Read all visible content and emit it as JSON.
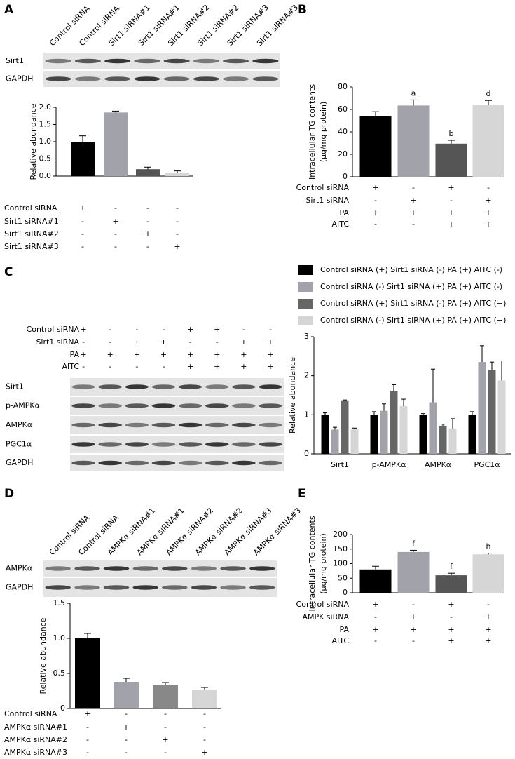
{
  "panels": [
    "A",
    "B",
    "C",
    "D",
    "E"
  ],
  "blots": [
    {
      "lanes": [
        "Control siRNA",
        "Control siRNA",
        "Sirt1 siRNA#1",
        "Sirt1 siRNA#1",
        "Sirt1 siRNA#2",
        "Sirt1 siRNA#2",
        "Sirt1 siRNA#3",
        "Sirt1 siRNA#3"
      ],
      "rows": [
        "Sirt1",
        "GAPDH"
      ]
    },
    {
      "conditions": [
        {
          "name": "Control siRNA",
          "marks": [
            "+",
            "-",
            "-",
            "-",
            "+",
            "+",
            "-",
            "-"
          ]
        },
        {
          "name": "Sirt1 siRNA",
          "marks": [
            "-",
            "-",
            "+",
            "+",
            "-",
            "-",
            "+",
            "+"
          ]
        },
        {
          "name": "PA",
          "marks": [
            "+",
            "+",
            "+",
            "+",
            "+",
            "+",
            "+",
            "+"
          ]
        },
        {
          "name": "AITC",
          "marks": [
            "-",
            "-",
            "-",
            "-",
            "+",
            "+",
            "+",
            "+"
          ]
        }
      ],
      "rows": [
        "Sirt1",
        "p-AMPKα",
        "AMPKα",
        "PGC1α",
        "GAPDH"
      ]
    },
    {
      "lanes": [
        "Control siRNA",
        "Control siRNA",
        "AMPKα siRNA#1",
        "AMPKα siRNA#1",
        "AMPKα siRNA#2",
        "AMPKα siRNA#2",
        "AMPKα siRNA#3",
        "AMPKα siRNA#3"
      ],
      "rows": [
        "AMPKα",
        "GAPDH"
      ]
    }
  ],
  "chart_data": [
    {
      "type": "bar",
      "y_label": [
        "Relative abundance"
      ],
      "ylim": [
        0,
        2
      ],
      "yticks": [
        {
          "value": 0,
          "label": "0.0"
        },
        0.5,
        {
          "value": 1,
          "label": "1.0"
        },
        1.5,
        {
          "value": 2,
          "label": "2.0"
        }
      ],
      "values": [
        1.0,
        1.85,
        0.2,
        0.1
      ],
      "errors": [
        0.17,
        0.04,
        0.06,
        0.05
      ],
      "colors": [
        "#000000",
        "#a2a2aa",
        "#555555",
        "#d6d6d6"
      ],
      "conditions": [
        {
          "name": "Control siRNA",
          "marks": [
            "+",
            "-",
            "-",
            "-"
          ]
        },
        {
          "name": "Sirt1 siRNA#1",
          "marks": [
            "-",
            "+",
            "-",
            "-"
          ]
        },
        {
          "name": "Sirt1 siRNA#2",
          "marks": [
            "-",
            "-",
            "+",
            "-"
          ]
        },
        {
          "name": "Sirt1 siRNA#3",
          "marks": [
            "-",
            "-",
            "-",
            "+"
          ]
        }
      ]
    },
    {
      "type": "bar",
      "y_label": [
        "Intracellular TG contents",
        "(μg/mg protein)"
      ],
      "ylim": [
        0,
        80
      ],
      "yticks": [
        0,
        20,
        40,
        60,
        80
      ],
      "values": [
        54,
        63.5,
        29.5,
        64
      ],
      "errors": [
        4,
        5,
        3,
        4
      ],
      "colors": [
        "#000000",
        "#a2a2aa",
        "#555555",
        "#d6d6d6"
      ],
      "annotations": [
        null,
        "a",
        "b",
        "d"
      ],
      "conditions": [
        {
          "name": "Control siRNA",
          "marks": [
            "+",
            "-",
            "+",
            "-"
          ]
        },
        {
          "name": "Sirt1 siRNA",
          "marks": [
            "-",
            "+",
            "-",
            "+"
          ]
        },
        {
          "name": "PA",
          "marks": [
            "+",
            "+",
            "+",
            "+"
          ]
        },
        {
          "name": "AITC",
          "marks": [
            "-",
            "-",
            "+",
            "+"
          ]
        }
      ]
    },
    {
      "type": "grouped_bar",
      "y_label": [
        "Relative abundance"
      ],
      "ylim": [
        0,
        3
      ],
      "yticks": [
        0,
        1,
        2,
        3
      ],
      "categories": [
        "Sirt1",
        "p-AMPKα",
        "AMPKα",
        "PGC1α"
      ],
      "series": [
        {
          "name": "Control siRNA (+) Sirt1 siRNA (-) PA (+) AITC (-)",
          "color": "#000000",
          "values": [
            1.0,
            1.0,
            1.0,
            1.0
          ],
          "errors": [
            0.05,
            0.08,
            0.03,
            0.08
          ]
        },
        {
          "name": "Control siRNA (-) Sirt1 siRNA (+) PA (+) AITC (-)",
          "color": "#a2a2aa",
          "values": [
            0.62,
            1.1,
            1.32,
            2.35
          ],
          "errors": [
            0.06,
            0.18,
            0.85,
            0.42
          ]
        },
        {
          "name": "Control siRNA (+) Sirt1 siRNA (-) PA (+) AITC (+)",
          "color": "#666666",
          "values": [
            1.37,
            1.6,
            0.72,
            2.15
          ],
          "errors": [
            0.01,
            0.17,
            0.04,
            0.2
          ]
        },
        {
          "name": "Control siRNA (-) Sirt1 siRNA (+) PA (+) AITC (+)",
          "color": "#d6d6d6",
          "values": [
            0.63,
            1.22,
            0.65,
            1.88
          ],
          "errors": [
            0.03,
            0.18,
            0.25,
            0.5
          ]
        }
      ]
    },
    {
      "type": "bar",
      "y_label": [
        "Relative abundance"
      ],
      "ylim": [
        0,
        1.5
      ],
      "yticks": [
        0,
        0.5,
        {
          "value": 1,
          "label": "1.0"
        },
        1.5
      ],
      "values": [
        1.0,
        0.38,
        0.34,
        0.27
      ],
      "errors": [
        0.07,
        0.05,
        0.03,
        0.03
      ],
      "colors": [
        "#000000",
        "#a2a2aa",
        "#888888",
        "#d6d6d6"
      ],
      "conditions": [
        {
          "name": "Control siRNA",
          "marks": [
            "+",
            "-",
            "-",
            "-"
          ]
        },
        {
          "name": "AMPKα siRNA#1",
          "marks": [
            "-",
            "+",
            "-",
            "-"
          ]
        },
        {
          "name": "AMPKα siRNA#2",
          "marks": [
            "-",
            "-",
            "+",
            "-"
          ]
        },
        {
          "name": "AMPKα siRNA#3",
          "marks": [
            "-",
            "-",
            "-",
            "+"
          ]
        }
      ]
    },
    {
      "type": "bar",
      "y_label": [
        "Intracellular TG contents",
        "(μg/mg protein)"
      ],
      "ylim": [
        0,
        200
      ],
      "yticks": [
        0,
        50,
        100,
        150,
        200
      ],
      "values": [
        80,
        140,
        60,
        132
      ],
      "errors": [
        11,
        6,
        7,
        4
      ],
      "colors": [
        "#000000",
        "#a2a2aa",
        "#555555",
        "#d6d6d6"
      ],
      "annotations": [
        null,
        "f",
        "f",
        "h"
      ],
      "conditions": [
        {
          "name": "Control siRNA",
          "marks": [
            "+",
            "-",
            "+",
            "-"
          ]
        },
        {
          "name": "AMPK siRNA",
          "marks": [
            "-",
            "+",
            "-",
            "+"
          ]
        },
        {
          "name": "PA",
          "marks": [
            "+",
            "+",
            "+",
            "+"
          ]
        },
        {
          "name": "AITC",
          "marks": [
            "-",
            "-",
            "+",
            "+"
          ]
        }
      ]
    }
  ]
}
